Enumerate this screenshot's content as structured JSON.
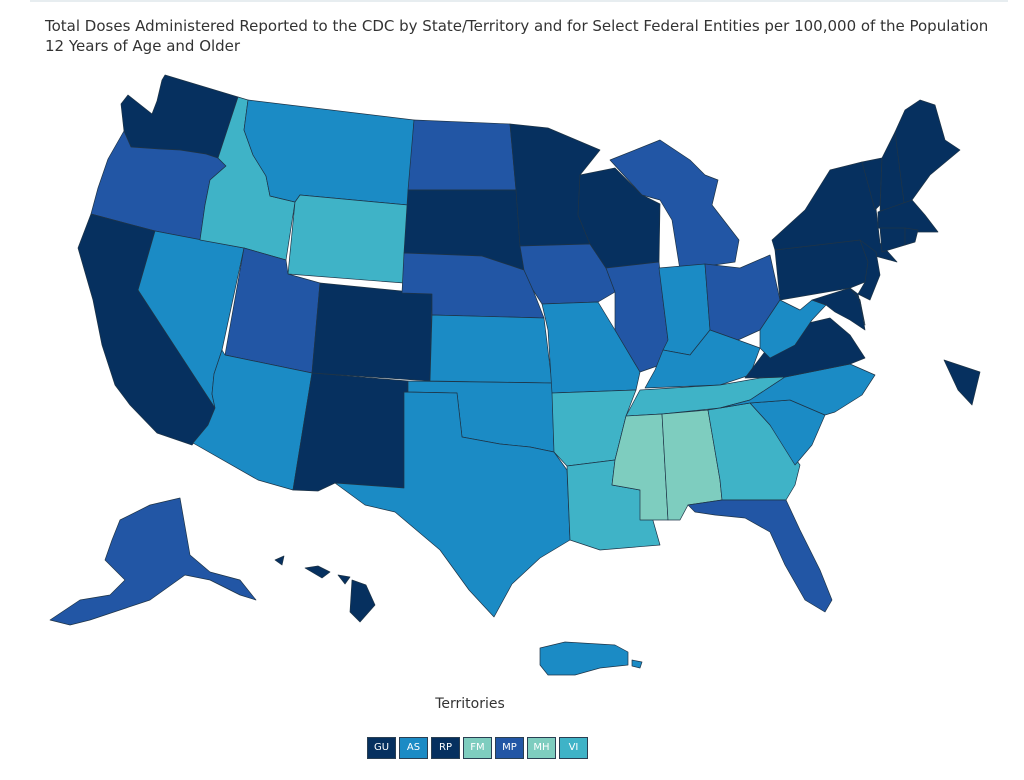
{
  "title": "Total Doses Administered Reported to the CDC by State/Territory and for Select Federal Entities per 100,000 of the Population 12 Years of Age and Older",
  "palette": {
    "c1": "#06305f",
    "c2": "#2256a5",
    "c3": "#1b8bc5",
    "c4": "#3fb3c7",
    "c5": "#7ecdbf"
  },
  "states": [
    {
      "id": "WA",
      "cls": "c1"
    },
    {
      "id": "OR",
      "cls": "c2"
    },
    {
      "id": "CA",
      "cls": "c1"
    },
    {
      "id": "NV",
      "cls": "c3"
    },
    {
      "id": "ID",
      "cls": "c4"
    },
    {
      "id": "MT",
      "cls": "c3"
    },
    {
      "id": "WY",
      "cls": "c4"
    },
    {
      "id": "UT",
      "cls": "c2"
    },
    {
      "id": "AZ",
      "cls": "c3"
    },
    {
      "id": "CO",
      "cls": "c1"
    },
    {
      "id": "NM",
      "cls": "c1"
    },
    {
      "id": "ND",
      "cls": "c2"
    },
    {
      "id": "SD",
      "cls": "c1"
    },
    {
      "id": "NE",
      "cls": "c2"
    },
    {
      "id": "KS",
      "cls": "c3"
    },
    {
      "id": "OK",
      "cls": "c3"
    },
    {
      "id": "TX",
      "cls": "c3"
    },
    {
      "id": "MN",
      "cls": "c1"
    },
    {
      "id": "IA",
      "cls": "c2"
    },
    {
      "id": "MO",
      "cls": "c3"
    },
    {
      "id": "AR",
      "cls": "c4"
    },
    {
      "id": "LA",
      "cls": "c4"
    },
    {
      "id": "WI",
      "cls": "c1"
    },
    {
      "id": "IL",
      "cls": "c2"
    },
    {
      "id": "MI",
      "cls": "c2"
    },
    {
      "id": "IN",
      "cls": "c3"
    },
    {
      "id": "OH",
      "cls": "c2"
    },
    {
      "id": "KY",
      "cls": "c3"
    },
    {
      "id": "TN",
      "cls": "c4"
    },
    {
      "id": "MS",
      "cls": "c5"
    },
    {
      "id": "AL",
      "cls": "c5"
    },
    {
      "id": "GA",
      "cls": "c4"
    },
    {
      "id": "FL",
      "cls": "c2"
    },
    {
      "id": "SC",
      "cls": "c3"
    },
    {
      "id": "NC",
      "cls": "c3"
    },
    {
      "id": "VA",
      "cls": "c1"
    },
    {
      "id": "WV",
      "cls": "c3"
    },
    {
      "id": "PA",
      "cls": "c1"
    },
    {
      "id": "NY",
      "cls": "c1"
    },
    {
      "id": "NJ",
      "cls": "c1"
    },
    {
      "id": "MD",
      "cls": "c1"
    },
    {
      "id": "DE",
      "cls": "c1"
    },
    {
      "id": "VT",
      "cls": "c1"
    },
    {
      "id": "NH",
      "cls": "c1"
    },
    {
      "id": "ME",
      "cls": "c1"
    },
    {
      "id": "MA",
      "cls": "c1"
    },
    {
      "id": "CT",
      "cls": "c1"
    },
    {
      "id": "RI",
      "cls": "c1"
    },
    {
      "id": "AK",
      "cls": "c2"
    },
    {
      "id": "HI",
      "cls": "c1"
    },
    {
      "id": "PR",
      "cls": "c3"
    },
    {
      "id": "DC",
      "cls": "c1"
    }
  ],
  "territories_label": "Territories",
  "territories": [
    {
      "code": "GU",
      "cls": "c1"
    },
    {
      "code": "AS",
      "cls": "c3"
    },
    {
      "code": "RP",
      "cls": "c1"
    },
    {
      "code": "FM",
      "cls": "c5"
    },
    {
      "code": "MP",
      "cls": "c2"
    },
    {
      "code": "MH",
      "cls": "c5"
    },
    {
      "code": "VI",
      "cls": "c4"
    }
  ]
}
